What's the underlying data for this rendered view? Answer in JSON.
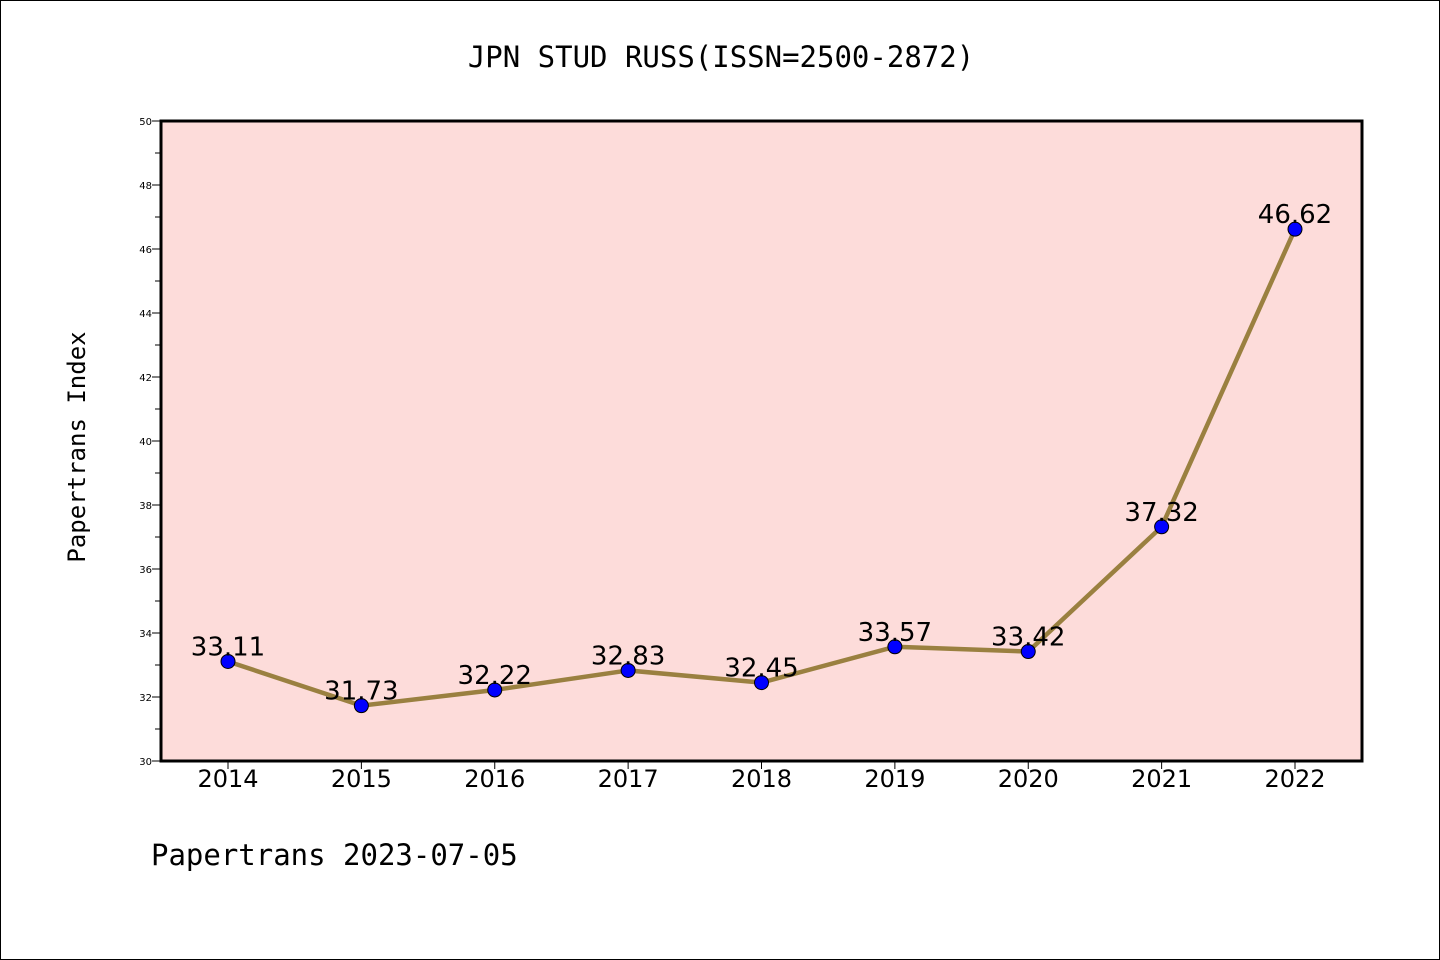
{
  "chart_data": {
    "type": "line",
    "title": "JPN STUD RUSS(ISSN=2500-2872)",
    "ylabel": "Papertrans Index",
    "xlabel": "",
    "categories": [
      "2014",
      "2015",
      "2016",
      "2017",
      "2018",
      "2019",
      "2020",
      "2021",
      "2022"
    ],
    "series": [
      {
        "values": [
          33.11,
          31.73,
          32.22,
          32.83,
          32.45,
          33.57,
          33.42,
          37.32,
          46.62
        ]
      }
    ],
    "data_labels": [
      "33.11",
      "31.73",
      "32.22",
      "32.83",
      "32.45",
      "33.57",
      "33.42",
      "37.32",
      "46.62"
    ],
    "ylim": [
      30,
      50
    ],
    "yticks": [
      "30",
      "32",
      "34",
      "36",
      "38",
      "40",
      "42",
      "44",
      "46",
      "48",
      "50"
    ],
    "grid": false,
    "legend": "none",
    "footer": "Papertrans 2023-07-05",
    "colors": {
      "plot_background": "#fddcda",
      "line": "#9a8040",
      "marker": "#0000ff",
      "frame": "#000000"
    }
  }
}
